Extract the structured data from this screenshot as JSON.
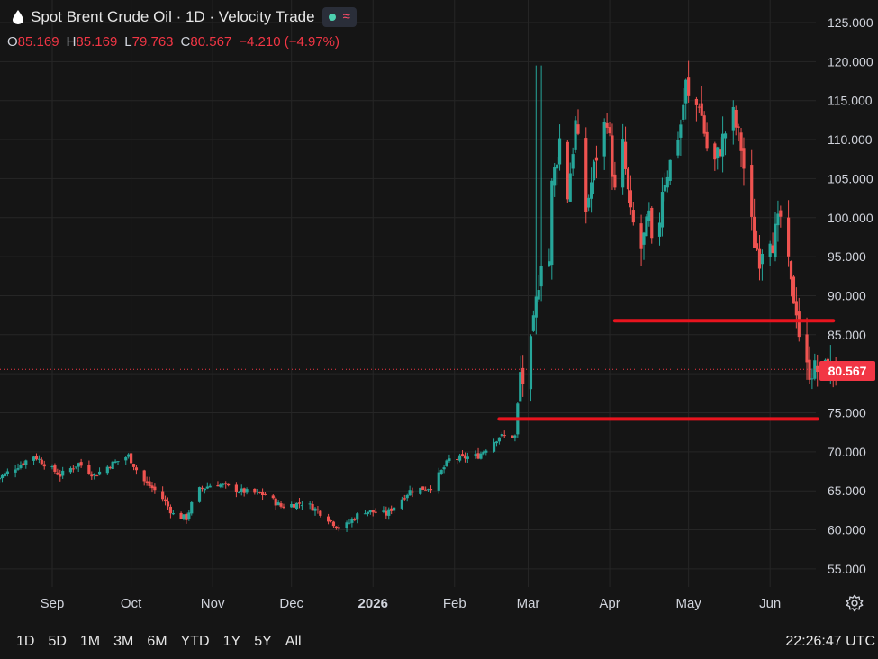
{
  "header": {
    "title": "Spot Brent Crude Oil · 1D · Velocity Trade"
  },
  "ohlc": {
    "o_label": "O",
    "o": "85.169",
    "h_label": "H",
    "h": "85.169",
    "l_label": "L",
    "l": "79.763",
    "c_label": "C",
    "c": "80.567",
    "change": "−4.210 (−4.97%)"
  },
  "last_price": "80.567",
  "timeframes": [
    "1D",
    "5D",
    "1M",
    "3M",
    "6M",
    "YTD",
    "1Y",
    "5Y",
    "All"
  ],
  "clock": "22:26:47 UTC",
  "colors": {
    "up": "#26a69a",
    "down": "#ef5350",
    "line": "#e8141e",
    "background": "#151515"
  },
  "chart_data": {
    "type": "candlestick",
    "x_ticks": [
      {
        "d": 0,
        "label": "Sep"
      },
      {
        "d": 30,
        "label": "Oct"
      },
      {
        "d": 61,
        "label": "Nov"
      },
      {
        "d": 91,
        "label": "Dec"
      },
      {
        "d": 122,
        "label": "2026"
      },
      {
        "d": 153,
        "label": "Feb"
      },
      {
        "d": 181,
        "label": "Mar"
      },
      {
        "d": 212,
        "label": "Apr"
      },
      {
        "d": 242,
        "label": "May"
      },
      {
        "d": 273,
        "label": "Jun"
      }
    ],
    "y_ticks": [
      "55.000",
      "60.000",
      "65.000",
      "70.000",
      "75.000",
      "80.000",
      "85.000",
      "90.000",
      "95.000",
      "100.000",
      "105.000",
      "110.000",
      "115.000",
      "120.000",
      "125.000"
    ],
    "ylim": [
      51,
      126
    ],
    "date_range": [
      -21,
      300
    ],
    "horizontal_lines": [
      {
        "price": 74.2,
        "from_day": 170,
        "to_day": 291
      },
      {
        "price": 86.8,
        "from_day": 214,
        "to_day": 297
      }
    ],
    "current_price": 80.567,
    "anchors": [
      [
        -21,
        66.5
      ],
      [
        -14,
        68.0
      ],
      [
        -7,
        69.5
      ],
      [
        -1,
        68.0
      ],
      [
        3,
        67.0
      ],
      [
        10,
        68.5
      ],
      [
        16,
        67.0
      ],
      [
        23,
        68.5
      ],
      [
        29,
        69.5
      ],
      [
        34,
        66.5
      ],
      [
        41,
        64.5
      ],
      [
        46,
        62.0
      ],
      [
        51,
        61.5
      ],
      [
        55,
        65.0
      ],
      [
        62,
        66.0
      ],
      [
        71,
        65.0
      ],
      [
        81,
        64.5
      ],
      [
        87,
        63.0
      ],
      [
        96,
        63.5
      ],
      [
        103,
        62.0
      ],
      [
        110,
        60.0
      ],
      [
        118,
        62.5
      ],
      [
        127,
        62.0
      ],
      [
        136,
        65.0
      ],
      [
        144,
        65.5
      ],
      [
        151,
        69.0
      ],
      [
        162,
        69.5
      ],
      [
        170,
        72.0
      ],
      [
        176,
        72.0
      ],
      [
        178,
        80.0
      ],
      [
        180,
        78.0
      ],
      [
        183,
        86.0
      ],
      [
        186,
        95.0
      ],
      [
        188,
        85.0
      ],
      [
        190,
        104.0
      ],
      [
        193,
        110.0
      ],
      [
        196,
        103.0
      ],
      [
        199,
        112.0
      ],
      [
        203,
        101.0
      ],
      [
        207,
        108.0
      ],
      [
        211,
        113.0
      ],
      [
        214,
        103.0
      ],
      [
        217,
        109.0
      ],
      [
        220,
        100.0
      ],
      [
        224,
        96.0
      ],
      [
        227,
        100.0
      ],
      [
        229,
        92.0
      ],
      [
        232,
        104.0
      ],
      [
        236,
        108.0
      ],
      [
        239,
        112.0
      ],
      [
        241,
        117.0
      ],
      [
        243,
        113.0
      ],
      [
        246,
        115.0
      ],
      [
        249,
        109.0
      ],
      [
        252,
        107.0
      ],
      [
        256,
        111.0
      ],
      [
        259,
        113.0
      ],
      [
        262,
        109.0
      ],
      [
        265,
        101.0
      ],
      [
        267,
        97.0
      ],
      [
        269,
        95.0
      ],
      [
        272,
        99.0
      ],
      [
        274,
        97.0
      ],
      [
        277,
        100.0
      ],
      [
        279,
        96.0
      ],
      [
        281,
        91.0
      ],
      [
        283,
        88.5
      ],
      [
        284,
        85.2
      ],
      [
        286,
        80.5
      ]
    ]
  }
}
